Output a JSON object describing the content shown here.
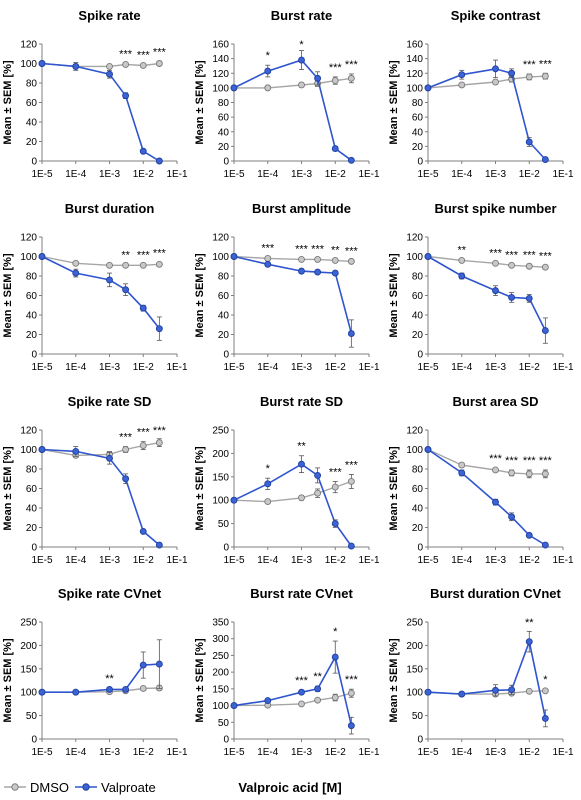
{
  "figure": {
    "ylabel": "Mean ± SEM [%]",
    "xlabel": "Valproic acid [M]",
    "legend": [
      {
        "name": "DMSO",
        "color": "#a6a6a6",
        "fill": "#c8c8c8"
      },
      {
        "name": "Valproate",
        "color": "#2f55cf",
        "fill": "#3b63d6"
      }
    ],
    "xtick_labels": [
      "1E-5",
      "1E-4",
      "1E-3",
      "1E-2",
      "1E-1"
    ]
  },
  "chart_data": [
    {
      "type": "line",
      "title": "Spike rate",
      "ylim": [
        0,
        120
      ],
      "yticks": [
        0,
        20,
        40,
        60,
        80,
        100,
        120
      ],
      "x": [
        1e-05,
        0.0001,
        0.001,
        0.003,
        0.01,
        0.03
      ],
      "series": [
        {
          "name": "DMSO",
          "values": [
            100,
            97,
            97,
            99,
            98,
            100
          ],
          "err": [
            0,
            2,
            1,
            1,
            1,
            2
          ]
        },
        {
          "name": "Valproate",
          "values": [
            100,
            97,
            89,
            67,
            10,
            0
          ],
          "err": [
            0,
            4,
            4,
            3,
            1,
            0
          ]
        }
      ],
      "annotations": [
        {
          "x": 0.003,
          "text": "***"
        },
        {
          "x": 0.01,
          "text": "***"
        },
        {
          "x": 0.03,
          "text": "***"
        }
      ]
    },
    {
      "type": "line",
      "title": "Burst rate",
      "ylim": [
        0,
        160
      ],
      "yticks": [
        0,
        20,
        40,
        60,
        80,
        100,
        120,
        140,
        160
      ],
      "x": [
        1e-05,
        0.0001,
        0.001,
        0.003,
        0.01,
        0.03
      ],
      "series": [
        {
          "name": "DMSO",
          "values": [
            100,
            100,
            104,
            106,
            110,
            113
          ],
          "err": [
            0,
            2,
            3,
            4,
            5,
            6
          ]
        },
        {
          "name": "Valproate",
          "values": [
            100,
            123,
            138,
            113,
            17,
            1
          ],
          "err": [
            0,
            8,
            13,
            9,
            3,
            1
          ]
        }
      ],
      "annotations": [
        {
          "x": 0.0001,
          "text": "*"
        },
        {
          "x": 0.001,
          "text": "*"
        },
        {
          "x": 0.01,
          "text": "***"
        },
        {
          "x": 0.03,
          "text": "***"
        }
      ]
    },
    {
      "type": "line",
      "title": "Spike contrast",
      "ylim": [
        0,
        160
      ],
      "yticks": [
        0,
        20,
        40,
        60,
        80,
        100,
        120,
        140,
        160
      ],
      "x": [
        1e-05,
        0.0001,
        0.001,
        0.003,
        0.01,
        0.03
      ],
      "series": [
        {
          "name": "DMSO",
          "values": [
            100,
            104,
            108,
            112,
            115,
            116
          ],
          "err": [
            0,
            2,
            3,
            4,
            4,
            4
          ]
        },
        {
          "name": "Valproate",
          "values": [
            100,
            118,
            126,
            120,
            26,
            2
          ],
          "err": [
            0,
            6,
            12,
            6,
            6,
            1
          ]
        }
      ],
      "annotations": [
        {
          "x": 0.01,
          "text": "***"
        },
        {
          "x": 0.03,
          "text": "***"
        }
      ]
    },
    {
      "type": "line",
      "title": "Burst duration",
      "ylim": [
        0,
        120
      ],
      "yticks": [
        0,
        20,
        40,
        60,
        80,
        100,
        120
      ],
      "x": [
        1e-05,
        0.0001,
        0.001,
        0.003,
        0.01,
        0.03
      ],
      "series": [
        {
          "name": "DMSO",
          "values": [
            100,
            93,
            91,
            91,
            91,
            92
          ],
          "err": [
            0,
            1,
            1,
            1,
            1,
            2
          ]
        },
        {
          "name": "Valproate",
          "values": [
            100,
            83,
            76,
            66,
            47,
            26
          ],
          "err": [
            0,
            4,
            7,
            6,
            3,
            12
          ]
        }
      ],
      "annotations": [
        {
          "x": 0.003,
          "text": "**"
        },
        {
          "x": 0.01,
          "text": "***"
        },
        {
          "x": 0.03,
          "text": "***"
        }
      ]
    },
    {
      "type": "line",
      "title": "Burst amplitude",
      "ylim": [
        0,
        120
      ],
      "yticks": [
        0,
        20,
        40,
        60,
        80,
        100,
        120
      ],
      "x": [
        1e-05,
        0.0001,
        0.001,
        0.003,
        0.01,
        0.03
      ],
      "series": [
        {
          "name": "DMSO",
          "values": [
            100,
            98,
            97,
            97,
            96,
            95
          ],
          "err": [
            0,
            1,
            1,
            1,
            1,
            1
          ]
        },
        {
          "name": "Valproate",
          "values": [
            100,
            92,
            85,
            84,
            83,
            21
          ],
          "err": [
            0,
            1,
            1,
            1,
            1,
            14
          ]
        }
      ],
      "annotations": [
        {
          "x": 0.0001,
          "text": "***"
        },
        {
          "x": 0.001,
          "text": "***"
        },
        {
          "x": 0.003,
          "text": "***"
        },
        {
          "x": 0.01,
          "text": "**"
        },
        {
          "x": 0.03,
          "text": "***"
        }
      ]
    },
    {
      "type": "line",
      "title": "Burst spike number",
      "ylim": [
        0,
        120
      ],
      "yticks": [
        0,
        20,
        40,
        60,
        80,
        100,
        120
      ],
      "x": [
        1e-05,
        0.0001,
        0.001,
        0.003,
        0.01,
        0.03
      ],
      "series": [
        {
          "name": "DMSO",
          "values": [
            100,
            96,
            93,
            91,
            90,
            89
          ],
          "err": [
            0,
            1,
            1,
            1,
            2,
            2
          ]
        },
        {
          "name": "Valproate",
          "values": [
            100,
            80,
            65,
            58,
            57,
            24
          ],
          "err": [
            0,
            3,
            5,
            5,
            4,
            13
          ]
        }
      ],
      "annotations": [
        {
          "x": 0.0001,
          "text": "**"
        },
        {
          "x": 0.001,
          "text": "***"
        },
        {
          "x": 0.003,
          "text": "***"
        },
        {
          "x": 0.01,
          "text": "***"
        },
        {
          "x": 0.03,
          "text": "***"
        }
      ]
    },
    {
      "type": "line",
      "title": "Spike rate SD",
      "ylim": [
        0,
        120
      ],
      "yticks": [
        0,
        20,
        40,
        60,
        80,
        100,
        120
      ],
      "x": [
        1e-05,
        0.0001,
        0.001,
        0.003,
        0.01,
        0.03
      ],
      "series": [
        {
          "name": "DMSO",
          "values": [
            100,
            94,
            95,
            100,
            104,
            107
          ],
          "err": [
            0,
            2,
            3,
            3,
            4,
            4
          ]
        },
        {
          "name": "Valproate",
          "values": [
            100,
            98,
            91,
            70,
            16,
            2
          ],
          "err": [
            0,
            5,
            6,
            5,
            1,
            1
          ]
        }
      ],
      "annotations": [
        {
          "x": 0.003,
          "text": "***"
        },
        {
          "x": 0.01,
          "text": "***"
        },
        {
          "x": 0.03,
          "text": "***"
        }
      ]
    },
    {
      "type": "line",
      "title": "Burst rate SD",
      "ylim": [
        0,
        250
      ],
      "yticks": [
        0,
        50,
        100,
        150,
        200,
        250
      ],
      "x": [
        1e-05,
        0.0001,
        0.001,
        0.003,
        0.01,
        0.03
      ],
      "series": [
        {
          "name": "DMSO",
          "values": [
            100,
            97,
            105,
            115,
            128,
            140
          ],
          "err": [
            0,
            3,
            5,
            9,
            12,
            15
          ]
        },
        {
          "name": "Valproate",
          "values": [
            100,
            135,
            177,
            153,
            50,
            2
          ],
          "err": [
            0,
            12,
            18,
            16,
            8,
            1
          ]
        }
      ],
      "annotations": [
        {
          "x": 0.0001,
          "text": "*"
        },
        {
          "x": 0.001,
          "text": "**"
        },
        {
          "x": 0.01,
          "text": "***"
        },
        {
          "x": 0.03,
          "text": "***"
        }
      ]
    },
    {
      "type": "line",
      "title": "Burst area SD",
      "ylim": [
        0,
        120
      ],
      "yticks": [
        0,
        20,
        40,
        60,
        80,
        100,
        120
      ],
      "x": [
        1e-05,
        0.0001,
        0.001,
        0.003,
        0.01,
        0.03
      ],
      "series": [
        {
          "name": "DMSO",
          "values": [
            100,
            84,
            79,
            76,
            75,
            75
          ],
          "err": [
            0,
            2,
            2,
            3,
            4,
            4
          ]
        },
        {
          "name": "Valproate",
          "values": [
            100,
            76,
            46,
            31,
            12,
            2
          ],
          "err": [
            0,
            3,
            3,
            4,
            1,
            1
          ]
        }
      ],
      "annotations": [
        {
          "x": 0.001,
          "text": "***"
        },
        {
          "x": 0.003,
          "text": "***"
        },
        {
          "x": 0.01,
          "text": "***"
        },
        {
          "x": 0.03,
          "text": "***"
        }
      ]
    },
    {
      "type": "line",
      "title": "Spike rate CVnet",
      "ylim": [
        0,
        250
      ],
      "yticks": [
        0,
        50,
        100,
        150,
        200,
        250
      ],
      "x": [
        1e-05,
        0.0001,
        0.001,
        0.003,
        0.01,
        0.03
      ],
      "series": [
        {
          "name": "DMSO",
          "values": [
            100,
            100,
            101,
            103,
            108,
            109
          ],
          "err": [
            0,
            1,
            2,
            3,
            4,
            5
          ]
        },
        {
          "name": "Valproate",
          "values": [
            100,
            100,
            106,
            106,
            158,
            160
          ],
          "err": [
            0,
            2,
            3,
            3,
            28,
            52
          ]
        }
      ],
      "annotations": [
        {
          "x": 0.001,
          "text": "**"
        }
      ]
    },
    {
      "type": "line",
      "title": "Burst rate CVnet",
      "ylim": [
        0,
        350
      ],
      "yticks": [
        0,
        50,
        100,
        150,
        200,
        250,
        300,
        350
      ],
      "x": [
        1e-05,
        0.0001,
        0.001,
        0.003,
        0.01,
        0.03
      ],
      "series": [
        {
          "name": "DMSO",
          "values": [
            100,
            101,
            105,
            116,
            124,
            137
          ],
          "err": [
            0,
            2,
            4,
            5,
            10,
            12
          ]
        },
        {
          "name": "Valproate",
          "values": [
            100,
            115,
            140,
            150,
            245,
            40
          ],
          "err": [
            0,
            4,
            6,
            8,
            48,
            25
          ]
        }
      ],
      "annotations": [
        {
          "x": 0.001,
          "text": "***"
        },
        {
          "x": 0.003,
          "text": "**"
        },
        {
          "x": 0.01,
          "text": "*"
        },
        {
          "x": 0.03,
          "text": "***"
        }
      ]
    },
    {
      "type": "line",
      "title": "Burst duration CVnet",
      "ylim": [
        0,
        250
      ],
      "yticks": [
        0,
        50,
        100,
        150,
        200,
        250
      ],
      "x": [
        1e-05,
        0.0001,
        0.001,
        0.003,
        0.01,
        0.03
      ],
      "series": [
        {
          "name": "DMSO",
          "values": [
            100,
            96,
            96,
            98,
            102,
            103
          ],
          "err": [
            0,
            1,
            2,
            3,
            3,
            4
          ]
        },
        {
          "name": "Valproate",
          "values": [
            100,
            96,
            104,
            105,
            208,
            44
          ],
          "err": [
            0,
            2,
            12,
            10,
            22,
            18
          ]
        }
      ],
      "annotations": [
        {
          "x": 0.01,
          "text": "**"
        },
        {
          "x": 0.03,
          "text": "*"
        }
      ]
    }
  ]
}
